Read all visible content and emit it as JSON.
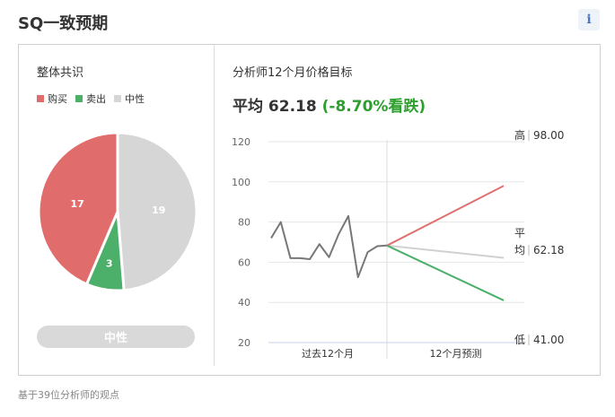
{
  "header": {
    "title": "SQ一致预期",
    "info_icon": "i"
  },
  "consensus": {
    "title": "整体共识",
    "legend": [
      {
        "label": "购买",
        "color": "#e06c6c"
      },
      {
        "label": "卖出",
        "color": "#4caf6a"
      },
      {
        "label": "中性",
        "color": "#d6d6d6"
      }
    ],
    "rating_label": "中性",
    "rating_color": "#d9d9d9"
  },
  "price_target": {
    "title": "分析师12个月价格目标",
    "average_prefix": "平均",
    "average_value": "62.18",
    "average_change": "(-8.70%看跌)",
    "high_label": "高",
    "high_value": "98.00",
    "avg_label_line1": "平",
    "avg_label_line2": "均",
    "avg_value": "62.18",
    "low_label": "低",
    "low_value": "41.00"
  },
  "chart_data": [
    {
      "type": "pie",
      "categories": [
        "购买",
        "卖出",
        "中性"
      ],
      "values": [
        17,
        3,
        19
      ],
      "colors": [
        "#e06c6c",
        "#4caf6a",
        "#d6d6d6"
      ]
    },
    {
      "type": "line",
      "xlabel_sections": [
        "过去12个月",
        "12个月预测"
      ],
      "ylim": [
        20,
        120
      ],
      "yticks": [
        20,
        40,
        60,
        80,
        100,
        120
      ],
      "grid": true,
      "history": [
        72,
        80,
        62,
        62,
        61.5,
        69,
        62.5,
        74,
        83,
        52.5,
        65,
        68,
        68.3
      ],
      "forecast_start": 68.3,
      "forecast": {
        "high": 98.0,
        "average": 62.18,
        "low": 41.0
      },
      "colors": {
        "history": "#777777",
        "high": "#e07070",
        "average": "#d0d0d0",
        "low": "#4caf6a"
      }
    }
  ],
  "footnote": "基于39位分析师的观点"
}
